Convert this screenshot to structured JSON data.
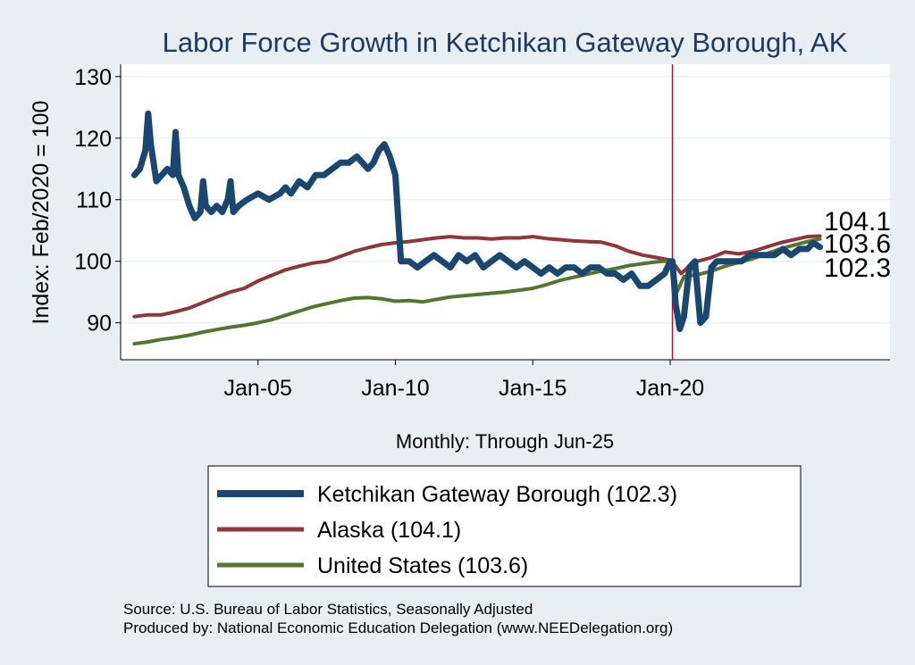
{
  "chart_data": {
    "type": "line",
    "title": "Labor Force Growth in Ketchikan Gateway Borough, AK",
    "ylabel": "Index: Feb/2020 = 100",
    "xlabel": "Monthly: Through Jun-25",
    "ylim": [
      84,
      132
    ],
    "xlim": [
      2000.0,
      2028.0
    ],
    "yticks": [
      90,
      100,
      110,
      120,
      130
    ],
    "xticks": [
      {
        "label": "Jan-05",
        "x": 2005.0
      },
      {
        "label": "Jan-10",
        "x": 2010.0
      },
      {
        "label": "Jan-15",
        "x": 2015.0
      },
      {
        "label": "Jan-20",
        "x": 2020.0
      }
    ],
    "vline": {
      "x": 2020.083,
      "color": "#b0113a"
    },
    "grid": true,
    "legend_placement": "bottom",
    "end_labels": [
      "104.1",
      "103.6",
      "102.3"
    ],
    "series": [
      {
        "name": "Ketchikan Gateway Borough  (102.3)",
        "color": "#1a476f",
        "x": [
          2000.5,
          2000.7,
          2000.9,
          2001.0,
          2001.1,
          2001.3,
          2001.5,
          2001.7,
          2001.9,
          2002.0,
          2002.1,
          2002.3,
          2002.5,
          2002.7,
          2002.9,
          2003.0,
          2003.1,
          2003.3,
          2003.5,
          2003.7,
          2003.9,
          2004.0,
          2004.1,
          2004.3,
          2004.6,
          2005.0,
          2005.4,
          2005.8,
          2006.0,
          2006.2,
          2006.5,
          2006.8,
          2007.1,
          2007.4,
          2007.7,
          2008.0,
          2008.3,
          2008.6,
          2008.8,
          2009.0,
          2009.2,
          2009.4,
          2009.6,
          2009.8,
          2010.0,
          2010.2,
          2010.5,
          2010.8,
          2011.1,
          2011.4,
          2011.7,
          2012.0,
          2012.3,
          2012.6,
          2012.9,
          2013.2,
          2013.5,
          2013.8,
          2014.1,
          2014.4,
          2014.7,
          2015.0,
          2015.3,
          2015.6,
          2015.9,
          2016.2,
          2016.5,
          2016.8,
          2017.1,
          2017.4,
          2017.7,
          2018.0,
          2018.3,
          2018.6,
          2018.9,
          2019.2,
          2019.5,
          2019.8,
          2020.0,
          2020.083,
          2020.2,
          2020.35,
          2020.5,
          2020.7,
          2020.9,
          2021.1,
          2021.3,
          2021.5,
          2021.7,
          2022.0,
          2022.3,
          2022.6,
          2022.9,
          2023.2,
          2023.5,
          2023.8,
          2024.1,
          2024.4,
          2024.7,
          2025.0,
          2025.2,
          2025.45
        ],
        "values": [
          114,
          115,
          118,
          124,
          119,
          113,
          114,
          115,
          114,
          121,
          114,
          112,
          109,
          107,
          108,
          113,
          109,
          108,
          109,
          108,
          110,
          113,
          108,
          109,
          110,
          111,
          110,
          111,
          112,
          111,
          113,
          112,
          114,
          114,
          115,
          116,
          116,
          117,
          116,
          115,
          116,
          118,
          119,
          117,
          114,
          100,
          100,
          99,
          100,
          101,
          100,
          99,
          101,
          100,
          101,
          99,
          100,
          101,
          100,
          99,
          100,
          99,
          98,
          99,
          98,
          99,
          99,
          98,
          99,
          99,
          98,
          98,
          97,
          98,
          96,
          96,
          97,
          98,
          100,
          100,
          93,
          89,
          91,
          99,
          100,
          90,
          91,
          99,
          100,
          100,
          100,
          100,
          101,
          101,
          101,
          101,
          102,
          101,
          102,
          102,
          103,
          102.3
        ]
      },
      {
        "name": "Alaska (104.1)",
        "color": "#90353b",
        "x": [
          2000.5,
          2001.0,
          2001.5,
          2002.0,
          2002.5,
          2003.0,
          2003.5,
          2004.0,
          2004.5,
          2005.0,
          2005.5,
          2006.0,
          2006.5,
          2007.0,
          2007.5,
          2008.0,
          2008.5,
          2009.0,
          2009.5,
          2010.0,
          2010.5,
          2011.0,
          2011.5,
          2012.0,
          2012.5,
          2013.0,
          2013.5,
          2014.0,
          2014.5,
          2015.0,
          2015.5,
          2016.0,
          2016.5,
          2017.0,
          2017.5,
          2018.0,
          2018.5,
          2019.0,
          2019.5,
          2020.0,
          2020.2,
          2020.4,
          2020.6,
          2020.8,
          2021.0,
          2021.5,
          2022.0,
          2022.5,
          2023.0,
          2023.5,
          2024.0,
          2024.5,
          2025.0,
          2025.45
        ],
        "values": [
          91.0,
          91.3,
          91.3,
          91.8,
          92.4,
          93.3,
          94.2,
          95.0,
          95.6,
          96.8,
          97.7,
          98.6,
          99.2,
          99.7,
          100.0,
          100.8,
          101.6,
          102.2,
          102.7,
          103.0,
          103.2,
          103.5,
          103.8,
          104.0,
          103.8,
          103.8,
          103.6,
          103.8,
          103.8,
          104.0,
          103.7,
          103.5,
          103.3,
          103.2,
          103.1,
          102.5,
          101.6,
          101.0,
          100.6,
          100.2,
          99.2,
          98.0,
          98.8,
          99.6,
          100.0,
          100.6,
          101.5,
          101.2,
          101.6,
          102.3,
          103.0,
          103.5,
          104.0,
          104.1
        ]
      },
      {
        "name": "United States (103.6)",
        "color": "#55752f",
        "x": [
          2000.5,
          2001.0,
          2001.5,
          2002.0,
          2002.5,
          2003.0,
          2003.5,
          2004.0,
          2004.5,
          2005.0,
          2005.5,
          2006.0,
          2006.5,
          2007.0,
          2007.5,
          2008.0,
          2008.5,
          2009.0,
          2009.5,
          2010.0,
          2010.5,
          2011.0,
          2011.5,
          2012.0,
          2012.5,
          2013.0,
          2013.5,
          2014.0,
          2014.5,
          2015.0,
          2015.5,
          2016.0,
          2016.5,
          2017.0,
          2017.5,
          2018.0,
          2018.5,
          2019.0,
          2019.5,
          2020.0,
          2020.083,
          2020.25,
          2020.5,
          2021.0,
          2021.5,
          2022.0,
          2022.5,
          2023.0,
          2023.5,
          2024.0,
          2024.5,
          2025.0,
          2025.45
        ],
        "values": [
          86.6,
          86.9,
          87.3,
          87.6,
          88.0,
          88.5,
          88.9,
          89.3,
          89.6,
          90.0,
          90.5,
          91.2,
          91.9,
          92.6,
          93.1,
          93.6,
          94.0,
          94.1,
          93.9,
          93.5,
          93.6,
          93.4,
          93.8,
          94.2,
          94.4,
          94.6,
          94.8,
          95.0,
          95.3,
          95.6,
          96.2,
          96.9,
          97.4,
          97.9,
          98.4,
          98.8,
          99.3,
          99.6,
          99.9,
          100.1,
          100.0,
          95.0,
          97.5,
          97.8,
          98.4,
          99.2,
          99.8,
          100.4,
          101.2,
          102.0,
          102.6,
          103.2,
          103.6
        ]
      }
    ]
  },
  "footer": {
    "source": "Source: U.S. Bureau of Labor Statistics, Seasonally Adjusted",
    "produced": "Produced by: National Economic Education Delegation (www.NEEDelegation.org)"
  }
}
